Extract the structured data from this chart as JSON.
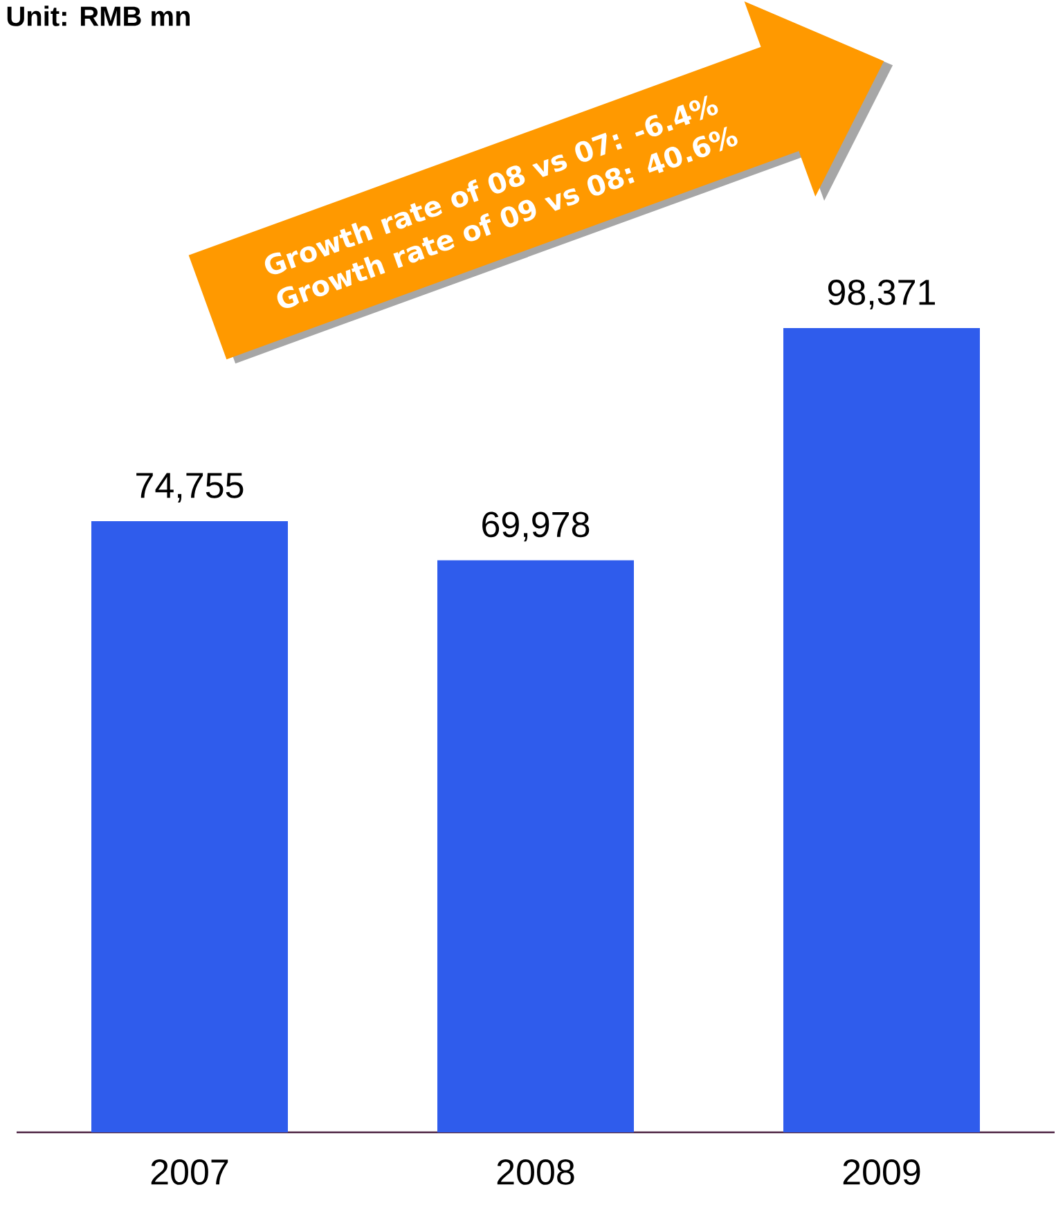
{
  "chart_data": {
    "type": "bar",
    "title": "Unit: RMB mn",
    "categories": [
      "2007",
      "2008",
      "2009"
    ],
    "values": [
      74755,
      69978,
      98371
    ],
    "value_labels": [
      "74,755",
      "69,978",
      "98,371"
    ],
    "color": "#2f5cec",
    "annotations": [
      "Growth rate of 08 vs 07: -6.4%",
      "Growth rate of 09 vs 08: 40.6%"
    ]
  }
}
